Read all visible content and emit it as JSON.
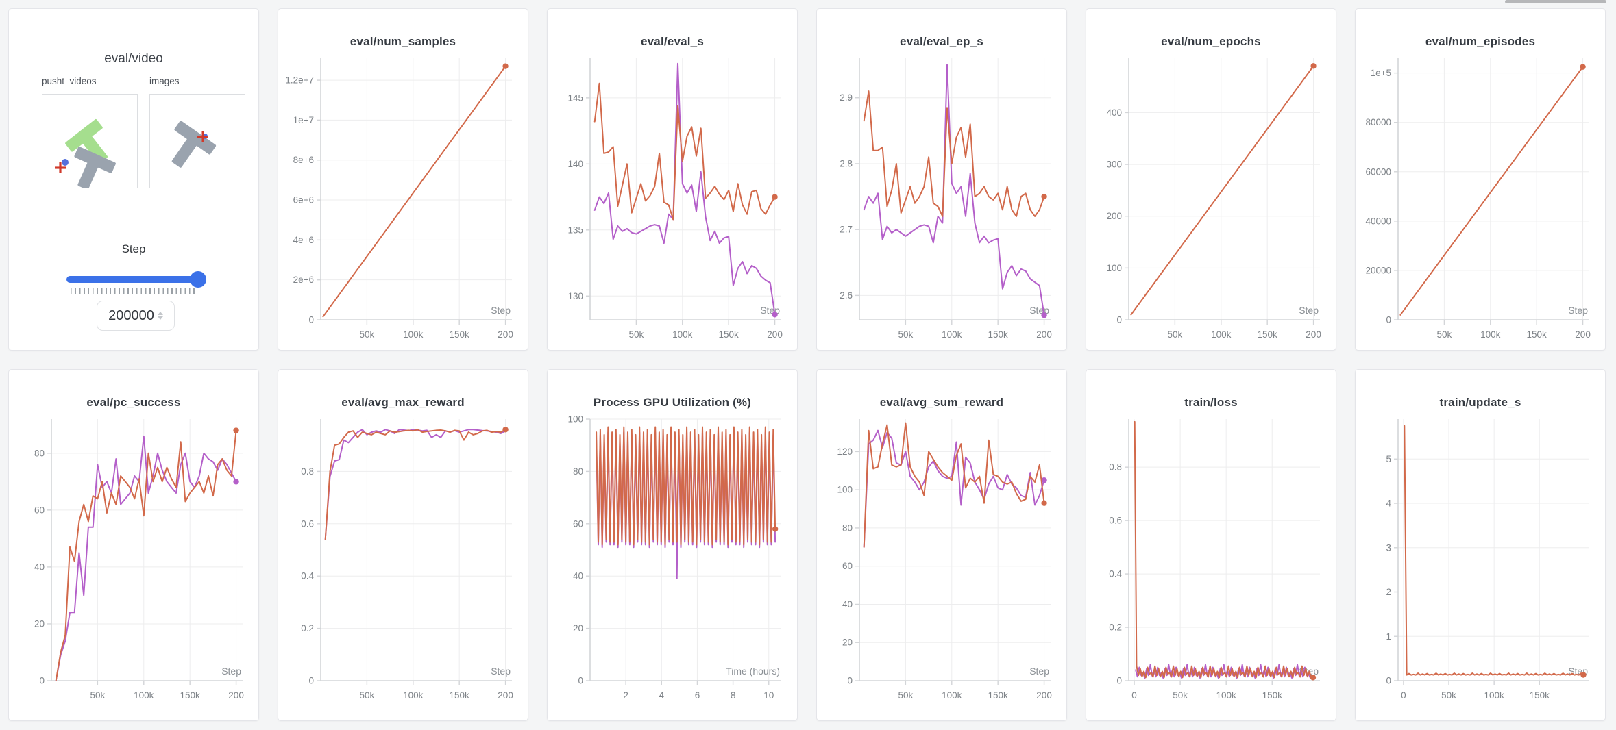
{
  "colors": {
    "orange": "#d2694a",
    "purple": "#b45fc9",
    "slider_blue": "#3b71e8",
    "grid": "#ededee",
    "axis": "#d3d5d8",
    "tick_text": "#7e8388",
    "green_t": "#a5de8e",
    "gray_t": "#9aa3ae",
    "red_cross": "#d03a2b",
    "blue_dot": "#5470dd"
  },
  "media_panel": {
    "title": "eval/video",
    "videos_label": "pusht_videos",
    "images_label": "images",
    "step_label": "Step",
    "step_value": "200000"
  },
  "charts": [
    {
      "title": "eval/num_samples",
      "xlabel": "Step",
      "xlim": [
        0,
        207000
      ],
      "ylim": [
        0,
        13100000
      ],
      "x_tick_vals": [
        50000,
        100000,
        150000,
        200000
      ],
      "x_tick_labels": [
        "50k",
        "100k",
        "150k",
        "200"
      ],
      "y_tick_vals": [
        0,
        2000000,
        4000000,
        6000000,
        8000000,
        10000000,
        12000000
      ],
      "y_tick_labels": [
        "0",
        "2e+6",
        "4e+6",
        "6e+6",
        "8e+6",
        "1e+7",
        "1.2e+7"
      ],
      "series": [
        {
          "color": "orange",
          "end_dot": true,
          "points": [
            [
              2500,
              160000
            ],
            [
              200000,
              12700000
            ]
          ]
        }
      ]
    },
    {
      "title": "eval/eval_s",
      "xlabel": "Step",
      "xlim": [
        0,
        207000
      ],
      "ylim": [
        128.2,
        148.0
      ],
      "x_tick_vals": [
        50000,
        100000,
        150000,
        200000
      ],
      "x_tick_labels": [
        "50k",
        "100k",
        "150k",
        "200"
      ],
      "y_tick_vals": [
        130,
        135,
        140,
        145
      ],
      "y_tick_labels": [
        "130",
        "135",
        "140",
        "145"
      ],
      "series": [
        {
          "color": "purple",
          "end_dot": true,
          "x_start": 5000,
          "x_step": 5000,
          "y": [
            136.5,
            137.5,
            137.0,
            137.8,
            134.3,
            135.3,
            134.9,
            135.1,
            134.8,
            134.7,
            134.9,
            135.1,
            135.3,
            135.4,
            135.3,
            134.0,
            136.2,
            135.8,
            147.6,
            138.5,
            137.8,
            138.4,
            136.4,
            139.4,
            136.0,
            134.2,
            134.9,
            134.0,
            134.4,
            134.5,
            130.8,
            132.1,
            132.6,
            131.7,
            132.3,
            132.1,
            131.5,
            131.2,
            131.0,
            128.6
          ]
        },
        {
          "color": "orange",
          "end_dot": true,
          "x_start": 5000,
          "x_step": 5000,
          "y": [
            143.2,
            146.1,
            140.8,
            140.9,
            141.3,
            136.8,
            138.4,
            140.0,
            136.3,
            137.4,
            138.5,
            137.2,
            137.6,
            138.3,
            140.8,
            137.1,
            136.9,
            135.8,
            144.4,
            140.2,
            142.1,
            142.8,
            140.6,
            142.7,
            137.4,
            137.8,
            138.3,
            137.7,
            137.3,
            138.0,
            136.4,
            138.5,
            136.9,
            136.2,
            137.9,
            138.0,
            136.6,
            136.2,
            136.9,
            137.5
          ]
        }
      ]
    },
    {
      "title": "eval/eval_ep_s",
      "xlabel": "Step",
      "xlim": [
        0,
        207000
      ],
      "ylim": [
        2.563,
        2.96
      ],
      "x_tick_vals": [
        50000,
        100000,
        150000,
        200000
      ],
      "x_tick_labels": [
        "50k",
        "100k",
        "150k",
        "200"
      ],
      "y_tick_vals": [
        2.6,
        2.7,
        2.8,
        2.9
      ],
      "y_tick_labels": [
        "2.6",
        "2.7",
        "2.8",
        "2.9"
      ],
      "series": [
        {
          "color": "purple",
          "end_dot": true,
          "x_start": 5000,
          "x_step": 5000,
          "y": [
            2.73,
            2.75,
            2.74,
            2.755,
            2.685,
            2.705,
            2.695,
            2.7,
            2.695,
            2.69,
            2.695,
            2.7,
            2.705,
            2.707,
            2.705,
            2.68,
            2.72,
            2.71,
            2.95,
            2.77,
            2.755,
            2.765,
            2.72,
            2.785,
            2.71,
            2.68,
            2.69,
            2.68,
            2.684,
            2.686,
            2.61,
            2.635,
            2.645,
            2.63,
            2.64,
            2.637,
            2.625,
            2.62,
            2.615,
            2.57
          ]
        },
        {
          "color": "orange",
          "end_dot": true,
          "x_start": 5000,
          "x_step": 5000,
          "y": [
            2.865,
            2.91,
            2.82,
            2.82,
            2.825,
            2.735,
            2.76,
            2.8,
            2.725,
            2.745,
            2.765,
            2.74,
            2.75,
            2.765,
            2.81,
            2.74,
            2.735,
            2.72,
            2.885,
            2.8,
            2.84,
            2.855,
            2.81,
            2.86,
            2.75,
            2.755,
            2.765,
            2.75,
            2.745,
            2.755,
            2.73,
            2.765,
            2.73,
            2.72,
            2.75,
            2.755,
            2.73,
            2.72,
            2.73,
            2.75
          ]
        }
      ]
    },
    {
      "title": "eval/num_epochs",
      "xlabel": "Step",
      "xlim": [
        0,
        207000
      ],
      "ylim": [
        0,
        505
      ],
      "x_tick_vals": [
        50000,
        100000,
        150000,
        200000
      ],
      "x_tick_labels": [
        "50k",
        "100k",
        "150k",
        "200"
      ],
      "y_tick_vals": [
        0,
        100,
        200,
        300,
        400
      ],
      "y_tick_labels": [
        "0",
        "100",
        "200",
        "300",
        "400"
      ],
      "series": [
        {
          "color": "orange",
          "end_dot": true,
          "points": [
            [
              2500,
              10
            ],
            [
              200000,
              490
            ]
          ]
        }
      ]
    },
    {
      "title": "eval/num_episodes",
      "xlabel": "Step",
      "xlim": [
        0,
        207000
      ],
      "ylim": [
        0,
        106000
      ],
      "x_tick_vals": [
        50000,
        100000,
        150000,
        200000
      ],
      "x_tick_labels": [
        "50k",
        "100k",
        "150k",
        "200"
      ],
      "y_tick_vals": [
        0,
        20000,
        40000,
        60000,
        80000,
        100000
      ],
      "y_tick_labels": [
        "0",
        "20000",
        "40000",
        "60000",
        "80000",
        "1e+5"
      ],
      "series": [
        {
          "color": "orange",
          "end_dot": true,
          "points": [
            [
              2500,
              2000
            ],
            [
              200000,
              102500
            ]
          ]
        }
      ]
    },
    {
      "title": "eval/pc_success",
      "xlabel": "Step",
      "xlim": [
        0,
        207000
      ],
      "ylim": [
        0,
        92
      ],
      "x_tick_vals": [
        50000,
        100000,
        150000,
        200000
      ],
      "x_tick_labels": [
        "50k",
        "100k",
        "150k",
        "200"
      ],
      "y_tick_vals": [
        0,
        20,
        40,
        60,
        80
      ],
      "y_tick_labels": [
        "0",
        "20",
        "40",
        "60",
        "80"
      ],
      "series": [
        {
          "color": "purple",
          "end_dot": true,
          "x_start": 5000,
          "x_step": 5000,
          "y": [
            0,
            9,
            14,
            24,
            24,
            45,
            30,
            54,
            54,
            76,
            68,
            70,
            66,
            78,
            62,
            64,
            66,
            72,
            70,
            86,
            66,
            72,
            80,
            74,
            70,
            68,
            66,
            76,
            80,
            70,
            68,
            72,
            80,
            78,
            77,
            74,
            78,
            76,
            73,
            70
          ]
        },
        {
          "color": "orange",
          "end_dot": true,
          "x_start": 5000,
          "x_step": 5000,
          "y": [
            0,
            10,
            16,
            47,
            42,
            56,
            62,
            56,
            65,
            64,
            70,
            59,
            66,
            62,
            72,
            70,
            68,
            64,
            71,
            58,
            80,
            70,
            75,
            70,
            75,
            71,
            68,
            84,
            63,
            66,
            68,
            70,
            66,
            72,
            65,
            76,
            78,
            74,
            72,
            88
          ]
        }
      ]
    },
    {
      "title": "eval/avg_max_reward",
      "xlabel": "Step",
      "xlim": [
        0,
        207000
      ],
      "ylim": [
        0,
        1.0
      ],
      "x_tick_vals": [
        50000,
        100000,
        150000,
        200000
      ],
      "x_tick_labels": [
        "50k",
        "100k",
        "150k",
        "200"
      ],
      "y_tick_vals": [
        0,
        0.2,
        0.4,
        0.6,
        0.8
      ],
      "y_tick_labels": [
        "0",
        "0.2",
        "0.4",
        "0.6",
        "0.8"
      ],
      "series": [
        {
          "color": "purple",
          "x_start": 5000,
          "x_step": 5000,
          "y": [
            0.54,
            0.78,
            0.84,
            0.845,
            0.92,
            0.91,
            0.93,
            0.95,
            0.96,
            0.94,
            0.95,
            0.955,
            0.95,
            0.96,
            0.955,
            0.945,
            0.96,
            0.958,
            0.956,
            0.96,
            0.958,
            0.955,
            0.957,
            0.93,
            0.94,
            0.93,
            0.955,
            0.95,
            0.956,
            0.95,
            0.955,
            0.96,
            0.96,
            0.958,
            0.956,
            0.955,
            0.953,
            0.95,
            0.945,
            0.955
          ]
        },
        {
          "color": "orange",
          "end_dot": true,
          "x_start": 5000,
          "x_step": 5000,
          "y": [
            0.54,
            0.8,
            0.9,
            0.905,
            0.93,
            0.95,
            0.955,
            0.93,
            0.95,
            0.945,
            0.94,
            0.95,
            0.945,
            0.94,
            0.955,
            0.95,
            0.952,
            0.955,
            0.957,
            0.955,
            0.96,
            0.95,
            0.953,
            0.955,
            0.957,
            0.958,
            0.955,
            0.95,
            0.957,
            0.955,
            0.92,
            0.95,
            0.94,
            0.945,
            0.955,
            0.957,
            0.95,
            0.952,
            0.95,
            0.96
          ]
        }
      ]
    },
    {
      "title": "Process GPU Utilization (%)",
      "xlabel": "Time (hours)",
      "xlim": [
        0,
        10.7
      ],
      "ylim": [
        0,
        100
      ],
      "x_tick_vals": [
        2,
        4,
        6,
        8,
        10
      ],
      "x_tick_labels": [
        "2",
        "4",
        "6",
        "8",
        "10"
      ],
      "y_tick_vals": [
        0,
        20,
        40,
        60,
        80,
        100
      ],
      "y_tick_labels": [
        "0",
        "20",
        "40",
        "60",
        "80",
        "100"
      ],
      "series": [
        {
          "color": "purple",
          "x_start": 0.35,
          "x_step": 0.11,
          "count": 92,
          "cycle": [
            92,
            52,
            94,
            51,
            91,
            53,
            95,
            52
          ],
          "overrides": {
            "41": 39
          },
          "last_y": 53
        },
        {
          "color": "orange",
          "end_dot": true,
          "x_start": 0.35,
          "x_step": 0.11,
          "count": 92,
          "cycle": [
            95,
            53,
            96,
            52,
            94,
            54,
            97,
            53
          ],
          "last_y": 58
        }
      ]
    },
    {
      "title": "eval/avg_sum_reward",
      "xlabel": "Step",
      "xlim": [
        0,
        207000
      ],
      "ylim": [
        0,
        137
      ],
      "x_tick_vals": [
        50000,
        100000,
        150000,
        200000
      ],
      "x_tick_labels": [
        "50k",
        "100k",
        "150k",
        "200"
      ],
      "y_tick_vals": [
        0,
        20,
        40,
        60,
        80,
        100,
        120
      ],
      "y_tick_labels": [
        "0",
        "20",
        "40",
        "60",
        "80",
        "100",
        "120"
      ],
      "series": [
        {
          "color": "purple",
          "end_dot": true,
          "x_start": 5000,
          "x_step": 5000,
          "y": [
            70,
            124,
            126,
            131,
            122,
            130,
            127,
            114,
            113,
            120,
            107,
            104,
            100,
            104,
            112,
            115,
            110,
            107,
            106,
            107,
            125,
            92,
            117,
            114,
            104,
            100,
            95,
            103,
            107,
            101,
            100,
            108,
            103,
            101,
            97,
            96,
            109,
            92,
            97,
            105
          ]
        },
        {
          "color": "orange",
          "end_dot": true,
          "x_start": 5000,
          "x_step": 5000,
          "y": [
            70,
            131,
            111,
            112,
            124,
            134,
            113,
            112,
            113,
            135,
            112,
            107,
            104,
            97,
            120,
            116,
            112,
            109,
            107,
            105,
            118,
            124,
            101,
            106,
            104,
            107,
            93,
            126,
            108,
            107,
            104,
            103,
            104,
            98,
            94,
            95,
            107,
            104,
            113,
            93
          ]
        }
      ]
    },
    {
      "title": "train/loss",
      "xlabel": "Step",
      "xlim": [
        -6000,
        202000
      ],
      "ylim": [
        0,
        0.98
      ],
      "x_tick_vals": [
        0,
        50000,
        100000,
        150000
      ],
      "x_tick_labels": [
        "0",
        "50k",
        "100k",
        "150k"
      ],
      "y_tick_vals": [
        0,
        0.2,
        0.4,
        0.6,
        0.8
      ],
      "y_tick_labels": [
        "0",
        "0.2",
        "0.4",
        "0.6",
        "0.8"
      ],
      "series": [
        {
          "color": "purple",
          "x_start": 1500,
          "x_step": 2000,
          "count": 96,
          "cycle": [
            0.04,
            0.015,
            0.05,
            0.02,
            0.03,
            0.01,
            0.045,
            0.02,
            0.06,
            0.018
          ]
        },
        {
          "color": "orange",
          "end_dot": true,
          "x_start": 500,
          "x_step": 2000,
          "count": 98,
          "first": 0.97,
          "cycle": [
            0.055,
            0.02,
            0.045,
            0.015,
            0.035,
            0.012,
            0.05,
            0.025,
            0.03,
            0.014
          ],
          "last_y": 0.012
        }
      ]
    },
    {
      "title": "train/update_s",
      "xlabel": "Step",
      "xlim": [
        -6000,
        205000
      ],
      "ylim": [
        0,
        5.9
      ],
      "x_tick_vals": [
        0,
        50000,
        100000,
        150000
      ],
      "x_tick_labels": [
        "0",
        "50k",
        "100k",
        "150k"
      ],
      "y_tick_vals": [
        0,
        1,
        2,
        3,
        4,
        5
      ],
      "y_tick_labels": [
        "0",
        "1",
        "2",
        "3",
        "4",
        "5"
      ],
      "series": [
        {
          "color": "orange",
          "end_dot": true,
          "x_start": 1000,
          "x_step": 2500,
          "count": 80,
          "first": 5.75,
          "cycle": [
            0.13,
            0.16,
            0.13,
            0.14,
            0.13,
            0.17,
            0.13,
            0.15
          ],
          "last_y": 0.13
        }
      ]
    }
  ]
}
